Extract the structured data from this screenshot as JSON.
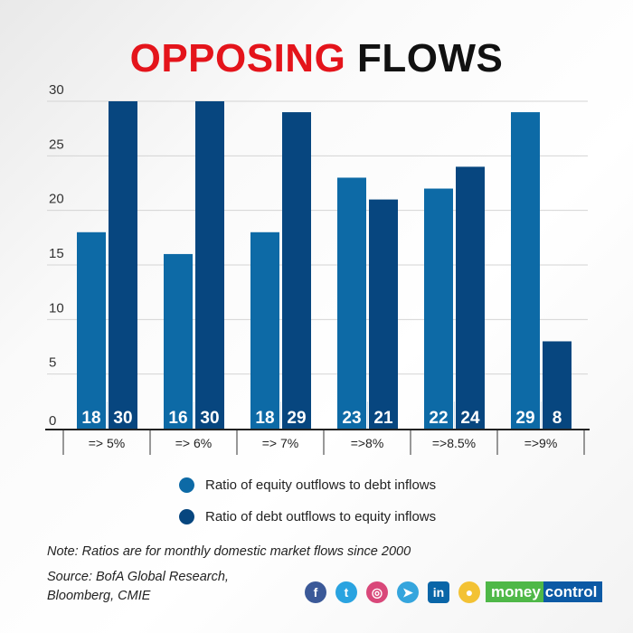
{
  "title": {
    "part1": "OPPOSING",
    "part2": "FLOWS",
    "part1_color": "#e4141b"
  },
  "chart_data": {
    "type": "bar",
    "categories": [
      "=> 5%",
      "=> 6%",
      "=> 7%",
      "=>8%",
      "=>8.5%",
      "=>9%"
    ],
    "series": [
      {
        "name": "Ratio of equity outflows to debt inflows",
        "color": "#0d6aa6",
        "values": [
          18,
          16,
          18,
          23,
          22,
          29
        ]
      },
      {
        "name": "Ratio of debt outflows to equity inflows",
        "color": "#07467f",
        "values": [
          30,
          30,
          29,
          21,
          24,
          8
        ]
      }
    ],
    "ylim": [
      0,
      30
    ],
    "yticks": [
      0,
      5,
      10,
      15,
      20,
      25,
      30
    ],
    "grid": true,
    "legend": "bottom"
  },
  "notes": {
    "note": "Note: Ratios are for monthly domestic market flows since 2000",
    "source_line1": "Source: BofA Global Research,",
    "source_line2": "Bloomberg, CMIE"
  },
  "footer": {
    "social": [
      {
        "icon": "facebook-icon",
        "glyph": "f",
        "color": "#3b5998"
      },
      {
        "icon": "twitter-icon",
        "glyph": "t",
        "color": "#2aa3e0"
      },
      {
        "icon": "instagram-icon",
        "glyph": "◎",
        "color": "#d9487a"
      },
      {
        "icon": "telegram-icon",
        "glyph": "➤",
        "color": "#35a5dd"
      },
      {
        "icon": "linkedin-icon",
        "glyph": "in",
        "color": "#0a66a8"
      },
      {
        "icon": "koo-icon",
        "glyph": "●",
        "color": "#f3c234"
      }
    ],
    "logo_part1": "money",
    "logo_part2": "control"
  }
}
